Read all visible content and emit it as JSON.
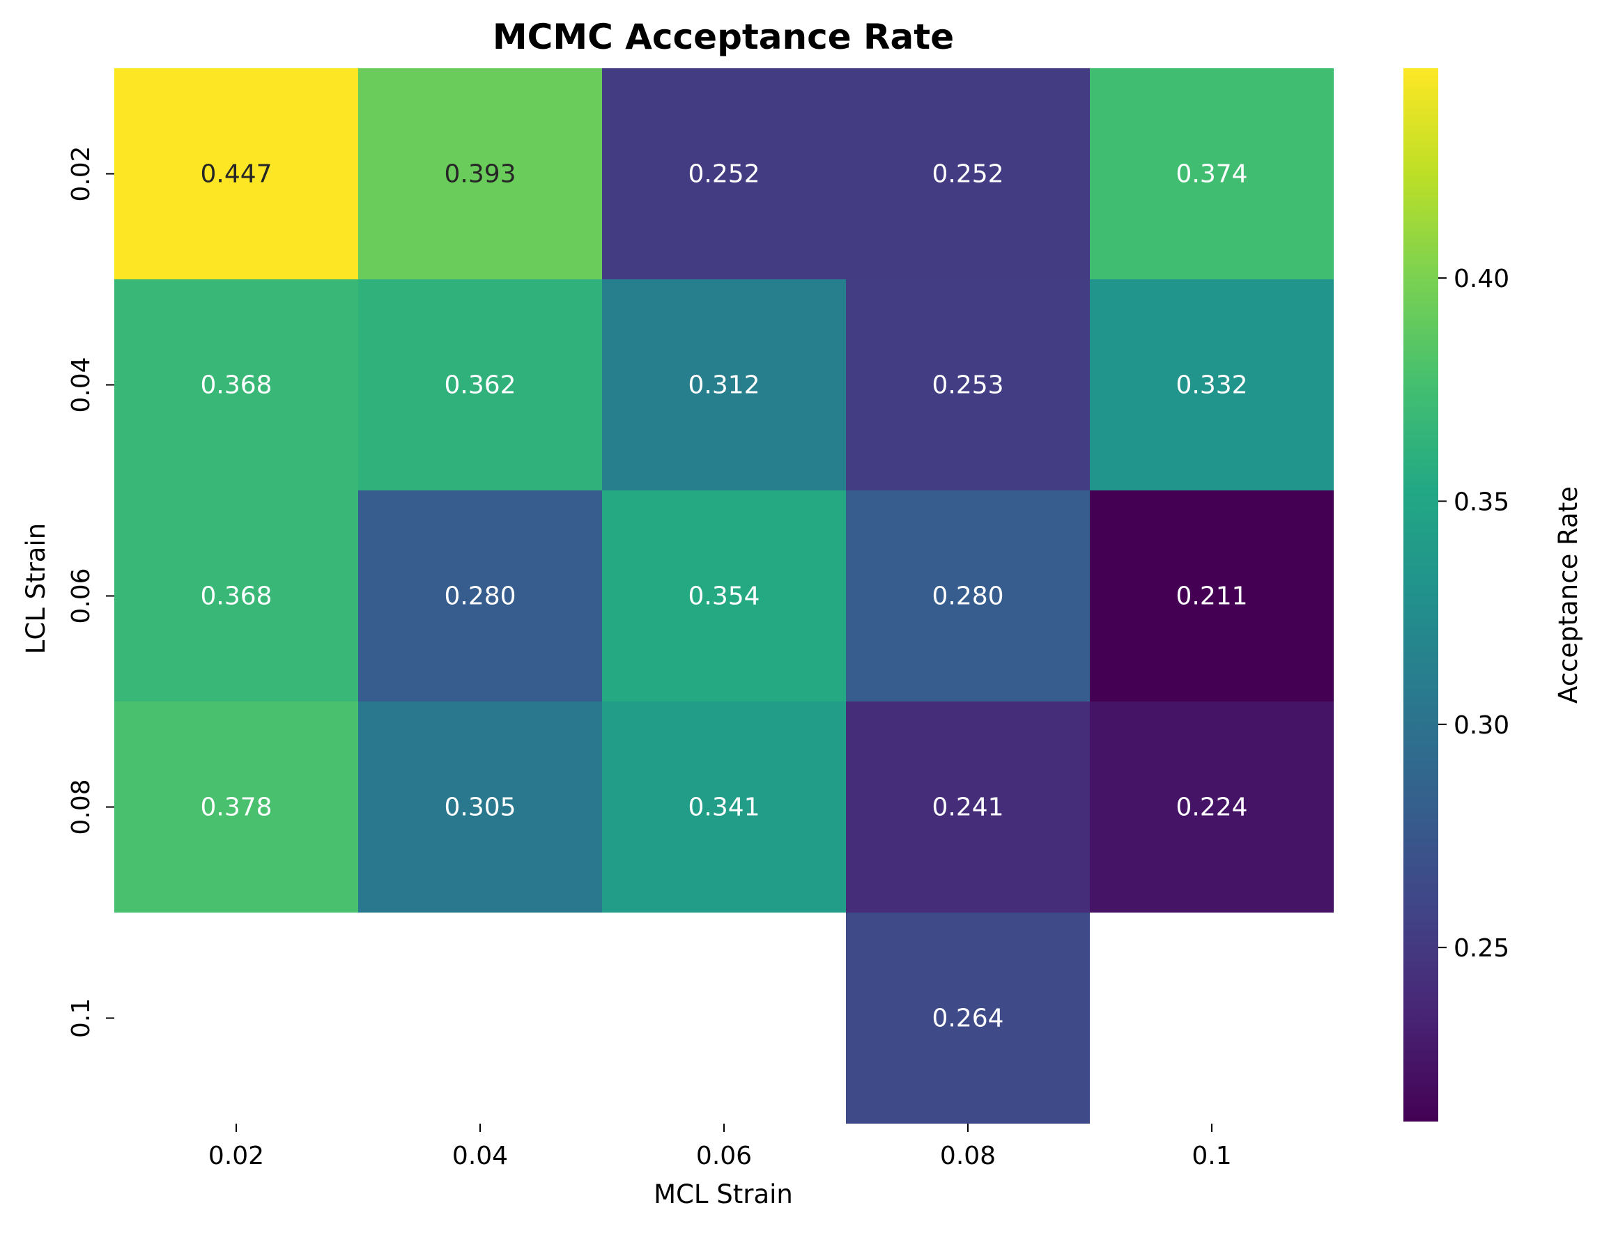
{
  "chart_data": {
    "type": "heatmap",
    "title": "MCMC Acceptance Rate",
    "xlabel": "MCL Strain",
    "ylabel": "LCL Strain",
    "x_categories": [
      "0.02",
      "0.04",
      "0.06",
      "0.08",
      "0.1"
    ],
    "y_categories": [
      "0.02",
      "0.04",
      "0.06",
      "0.08",
      "0.1"
    ],
    "values": [
      [
        0.447,
        0.393,
        0.252,
        0.252,
        0.374
      ],
      [
        0.368,
        0.362,
        0.312,
        0.253,
        0.332
      ],
      [
        0.368,
        0.28,
        0.354,
        0.28,
        0.211
      ],
      [
        0.378,
        0.305,
        0.341,
        0.241,
        0.224
      ],
      [
        null,
        null,
        null,
        0.264,
        null
      ]
    ],
    "colorbar": {
      "label": "Acceptance Rate",
      "vmin": 0.211,
      "vmax": 0.447,
      "ticks": [
        0.25,
        0.3,
        0.35,
        0.4
      ],
      "tick_labels": [
        "0.25",
        "0.30",
        "0.35",
        "0.40"
      ],
      "colormap": "viridis"
    },
    "annotation_format": "3 decimals",
    "grid": false
  }
}
